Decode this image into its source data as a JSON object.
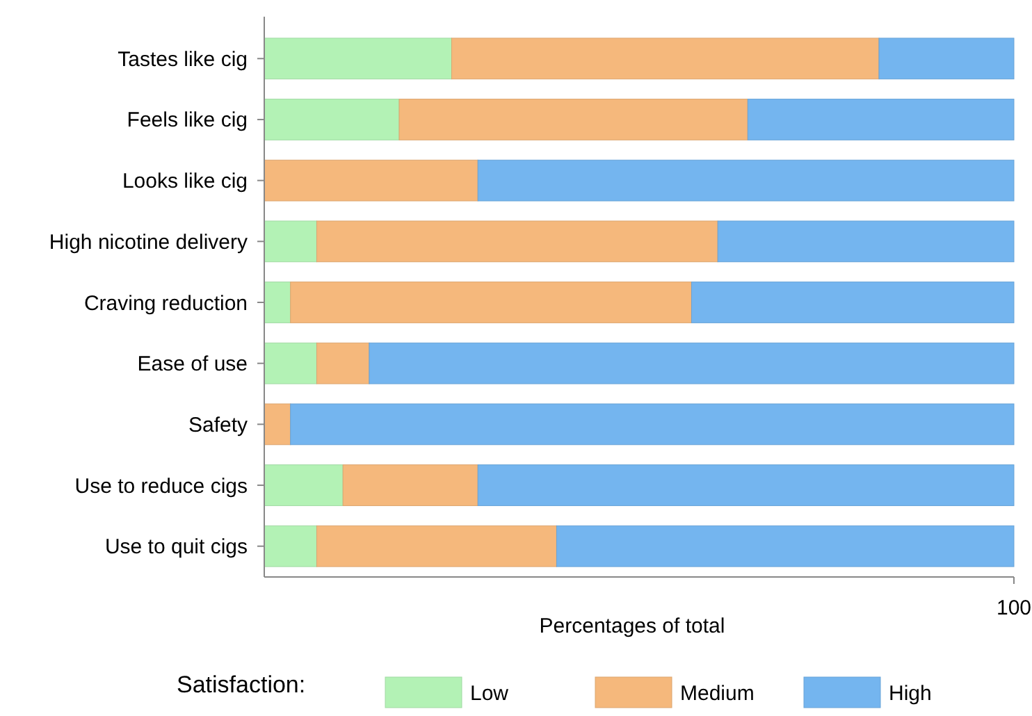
{
  "chart_data": {
    "type": "bar",
    "orientation": "horizontal",
    "stacked": true,
    "xlabel": "Percentages of total",
    "legend_title": "Satisfaction:",
    "legend": "bottom",
    "grid": false,
    "categories": [
      "Tastes like cig",
      "Feels like cig",
      "Looks like cig",
      "High nicotine delivery",
      "Craving reduction",
      "Ease of use",
      "Safety",
      "Use to reduce cigs",
      "Use to quit cigs"
    ],
    "xlim": [
      0,
      100
    ],
    "xticks": [
      100
    ],
    "series": [
      {
        "name": "Low",
        "color": "#b3f2b5",
        "values": [
          25,
          18,
          0,
          7,
          3.5,
          7,
          0,
          10.5,
          7
        ]
      },
      {
        "name": "Medium",
        "color": "#f5b87c",
        "values": [
          57,
          46.5,
          28.5,
          53.5,
          53.5,
          7,
          3.5,
          18,
          32
        ]
      },
      {
        "name": "High",
        "color": "#74b5ef",
        "values": [
          18,
          35.5,
          71.5,
          39.5,
          43,
          86,
          96.5,
          71.5,
          61
        ]
      }
    ]
  }
}
